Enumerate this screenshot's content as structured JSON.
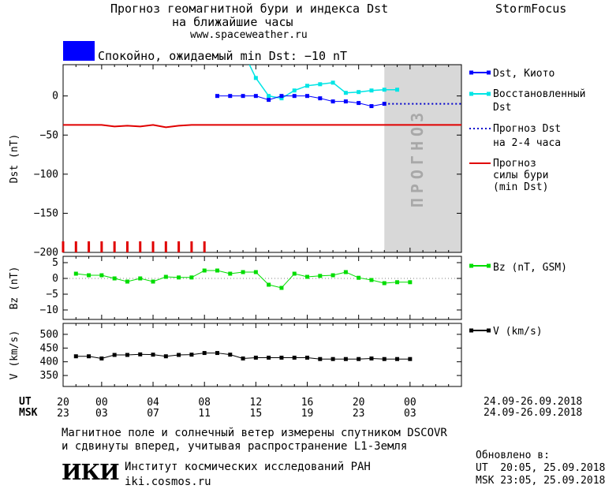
{
  "header": {
    "title_line1": "Прогноз геомагнитной бури и индекса Dst",
    "title_line2": "на ближайшие часы",
    "url": "www.spaceweather.ru",
    "brand": "StormFocus",
    "status_color": "#0000FF",
    "status_text": "Спокойно, ожидаемый min Dst: −10 nT"
  },
  "legend": {
    "dst_kyoto": "Dst, Киото",
    "restored_1": "Восстановленный",
    "restored_2": "Dst",
    "forecast_1": "Прогноз Dst",
    "forecast_2": "на 2-4 часа",
    "storm_1": "Прогноз",
    "storm_2": "силы бури",
    "storm_3": "(min Dst)",
    "bz": "Bz (nT, GSM)",
    "v": "V (km/s)"
  },
  "forecast_band_label": "ПРОГНОЗ",
  "time_axis": {
    "ut_label": "UT",
    "msk_label": "MSK",
    "ut_ticks": [
      "20",
      "00",
      "04",
      "08",
      "12",
      "16",
      "20",
      "00"
    ],
    "msk_ticks": [
      "23",
      "03",
      "07",
      "11",
      "15",
      "19",
      "23",
      "03"
    ],
    "ut_date_range": "24.09-26.09.2018",
    "msk_date_range": "24.09-26.09.2018"
  },
  "footer": {
    "note_line1": "Магнитное поле и солнечный ветер измерены спутником DSCOVR",
    "note_line2": "и сдвинуты вперед, учитывая распространение L1-Земля",
    "logo_text": "ИКИ",
    "institute": "Институт космических исследований РАН",
    "site": "iki.cosmos.ru",
    "updated_label": "Обновлено в:",
    "updated_ut": "UT  20:05, 25.09.2018",
    "updated_msk": "MSK 23:05, 25.09.2018"
  },
  "colors": {
    "dst_kyoto": "#0000FF",
    "restored": "#00E5E5",
    "forecast": "#0000CC",
    "storm": "#E00000",
    "bz": "#00DD00",
    "v": "#000000",
    "forecast_band": "#D8D8D8"
  },
  "chart_data": [
    {
      "type": "line",
      "name": "dst-panel",
      "ylabel": "Dst (nT)",
      "ylim": [
        -200,
        40
      ],
      "yticks": [
        0,
        -50,
        -100,
        -150,
        -200
      ],
      "xlim_hours": [
        0,
        31
      ],
      "series": [
        {
          "name": "Dst, Киото",
          "x": [
            12,
            13,
            14,
            15,
            16,
            17,
            18,
            19,
            20,
            21,
            22,
            23,
            24,
            25
          ],
          "y": [
            0,
            0,
            0,
            0,
            -5,
            0,
            0,
            0,
            -3,
            -7,
            -7,
            -9,
            -13,
            -10
          ]
        },
        {
          "name": "Восстановленный Dst",
          "x": [
            14.5,
            15,
            16,
            17,
            18,
            19,
            20,
            21,
            22,
            23,
            24,
            25,
            26
          ],
          "y": [
            40,
            23,
            0,
            -3,
            7,
            13,
            15,
            17,
            4,
            5,
            7,
            8,
            8
          ]
        },
        {
          "name": "Прогноз Dst на 2-4 часа",
          "x": [
            25,
            26,
            27,
            28,
            29,
            30,
            31
          ],
          "y": [
            -10,
            -10,
            -10,
            -10,
            -10,
            -10,
            -10
          ]
        },
        {
          "name": "Прогноз силы бури (min Dst)",
          "x": [
            0,
            0.5,
            1,
            2,
            3,
            4,
            5,
            6,
            7,
            8,
            9,
            10,
            11,
            11.7,
            12,
            13,
            14,
            15,
            16,
            17,
            18,
            19,
            20,
            21,
            22,
            23,
            24,
            25,
            26,
            27,
            28,
            29,
            30,
            31
          ],
          "y": [
            -37,
            -37,
            -37,
            -37,
            -37,
            -39,
            -38,
            -39,
            -37,
            -40,
            -38,
            -37,
            -37,
            -37,
            -37,
            -37,
            -37,
            -37,
            -37,
            -37,
            -37,
            -37,
            -37,
            -37,
            -37,
            -37,
            -37,
            -37,
            -37,
            -37,
            -37,
            -37,
            -37,
            -37
          ]
        }
      ],
      "red_markers_x": [
        0,
        1,
        2,
        3,
        4,
        5,
        6,
        7,
        8,
        9,
        10,
        11
      ]
    },
    {
      "type": "line",
      "name": "bz-panel",
      "ylabel": "Bz (nT)",
      "ylim": [
        -13,
        7
      ],
      "yticks": [
        5,
        0,
        -5,
        -10
      ],
      "series": [
        {
          "name": "Bz (nT, GSM)",
          "x": [
            1,
            2,
            3,
            4,
            5,
            6,
            7,
            8,
            9,
            10,
            11,
            12,
            13,
            14,
            15,
            16,
            17,
            18,
            19,
            20,
            21,
            22,
            23,
            24,
            25,
            26,
            27
          ],
          "y": [
            1.5,
            1,
            1,
            0,
            -1,
            0,
            -1,
            0.5,
            0.3,
            0.3,
            2.5,
            2.5,
            1.5,
            2,
            2,
            -2,
            -3,
            1.5,
            0.5,
            0.8,
            1,
            2,
            0.2,
            -0.5,
            -1.5,
            -1.2,
            -1.2
          ]
        }
      ]
    },
    {
      "type": "line",
      "name": "v-panel",
      "ylabel": "V (km/s)",
      "ylim": [
        310,
        540
      ],
      "yticks": [
        500,
        450,
        400,
        350
      ],
      "series": [
        {
          "name": "V (km/s)",
          "x": [
            1,
            2,
            3,
            4,
            5,
            6,
            7,
            8,
            9,
            10,
            11,
            12,
            13,
            14,
            15,
            16,
            17,
            18,
            19,
            20,
            21,
            22,
            23,
            24,
            25,
            26,
            27
          ],
          "y": [
            420,
            420,
            412,
            425,
            425,
            427,
            426,
            420,
            425,
            426,
            432,
            432,
            426,
            412,
            415,
            415,
            415,
            415,
            415,
            410,
            410,
            410,
            410,
            412,
            410,
            410,
            410
          ]
        }
      ]
    }
  ]
}
